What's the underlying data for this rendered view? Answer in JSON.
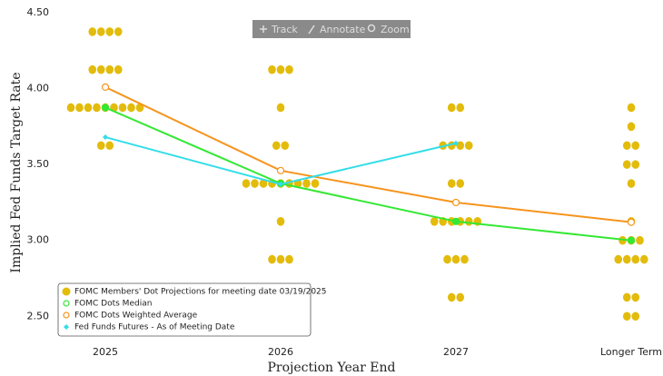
{
  "toolbar": [
    "Track",
    "Annotate",
    "Zoom"
  ],
  "chart_data": {
    "type": "dotplot",
    "xlabel": "Projection Year End",
    "ylabel": "Implied Fed Funds Target Rate",
    "categories": [
      "2025",
      "2026",
      "2027",
      "Longer Term"
    ],
    "ylim": [
      2.37,
      4.5
    ],
    "yticks": [
      {
        "value": 2.5,
        "label": "2.50"
      },
      {
        "value": 3,
        "label": "3.00"
      },
      {
        "value": 3.5,
        "label": "3.50"
      },
      {
        "value": 4,
        "label": "4.00"
      },
      {
        "value": 4.5,
        "label": "4.50"
      }
    ],
    "legend": "lower left",
    "series": [
      {
        "name": "FOMC Members' Dot Projections for meeting date 03/19/2025",
        "color": "#e3bb0a",
        "kind": "dots",
        "values": [
          [
            4.375,
            4.375,
            4.375,
            4.375,
            4.125,
            4.125,
            4.125,
            4.125,
            3.875,
            3.875,
            3.875,
            3.875,
            3.875,
            3.875,
            3.875,
            3.875,
            3.875,
            3.625,
            3.625
          ],
          [
            4.125,
            4.125,
            4.125,
            3.875,
            3.625,
            3.625,
            3.375,
            3.375,
            3.375,
            3.375,
            3.375,
            3.375,
            3.375,
            3.375,
            3.375,
            3.125,
            2.875,
            2.875,
            2.875
          ],
          [
            3.875,
            3.875,
            3.625,
            3.625,
            3.625,
            3.625,
            3.375,
            3.375,
            3.125,
            3.125,
            3.125,
            3.125,
            3.125,
            3.125,
            2.875,
            2.875,
            2.875,
            2.625,
            2.625
          ],
          [
            3.875,
            3.75,
            3.625,
            3.625,
            3.5,
            3.5,
            3.375,
            3.125,
            3.0,
            3.0,
            3.0,
            2.875,
            2.875,
            2.875,
            2.875,
            2.625,
            2.625,
            2.5,
            2.5
          ]
        ]
      },
      {
        "name": "FOMC Dots Median",
        "color": "#33e833",
        "kind": "line-filled",
        "values": [
          3.875,
          3.375,
          3.125,
          3.0
        ]
      },
      {
        "name": "FOMC Dots Weighted Average",
        "color": "#f7941d",
        "kind": "line-hollow",
        "values": [
          4.01,
          3.46,
          3.25,
          3.12
        ]
      },
      {
        "name": "Fed Funds Futures - As of Meeting Date",
        "color": "#33dde8",
        "kind": "line-diamond",
        "values": [
          3.68,
          3.37,
          3.64,
          null
        ]
      }
    ]
  }
}
